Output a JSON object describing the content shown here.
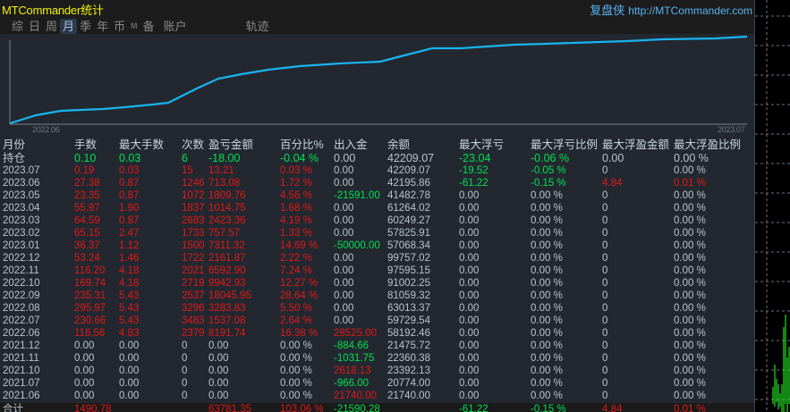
{
  "app": {
    "title": "MTCommander统计",
    "brand_cn": "复盘侠",
    "brand_url": "http://MTCommander.com"
  },
  "menu": {
    "items": [
      {
        "label": "综",
        "active": false
      },
      {
        "label": "日",
        "active": false
      },
      {
        "label": "周",
        "active": false
      },
      {
        "label": "月",
        "active": true
      },
      {
        "label": "季",
        "active": false
      },
      {
        "label": "年",
        "active": false
      },
      {
        "label": "币",
        "active": false
      },
      {
        "label": "M",
        "active": false
      },
      {
        "label": "备",
        "active": false
      },
      {
        "label": "账户",
        "active": false
      },
      {
        "label": "轨迹",
        "active": false
      }
    ]
  },
  "chart": {
    "x_start_label": "2022.06",
    "x_end_label": "2023.07",
    "line_color": "#19b4f0"
  },
  "table": {
    "headers": [
      "月份",
      "手数",
      "最大手数",
      "次数",
      "盈亏金额",
      "百分比%",
      "出入金",
      "余额",
      "最大浮亏",
      "最大浮亏比例",
      "最大浮盈金额",
      "最大浮盈比例"
    ],
    "holding": {
      "cells": [
        "持仓",
        "0.10",
        "0.03",
        "6",
        "-18.00",
        "-0.04 %",
        "0.00",
        "42209.07",
        "-23.04",
        "-0.06 %",
        "0.00",
        "0.00 %"
      ],
      "colors": [
        "w",
        "g",
        "g",
        "g",
        "g",
        "g",
        "w",
        "w",
        "g",
        "g",
        "w",
        "w"
      ]
    },
    "rows": [
      {
        "cells": [
          "2023.07",
          "0.19",
          "0.03",
          "15",
          "13.21",
          "0.03 %",
          "0.00",
          "42209.07",
          "-19.52",
          "-0.05 %",
          "0",
          "0.00 %"
        ],
        "colors": [
          "w",
          "r",
          "r",
          "r",
          "r",
          "r",
          "w",
          "w",
          "g",
          "g",
          "w",
          "w"
        ]
      },
      {
        "cells": [
          "2023.06",
          "27.38",
          "0.87",
          "1246",
          "713.08",
          "1.72 %",
          "0.00",
          "42195.86",
          "-61.22",
          "-0.15 %",
          "4.84",
          "0.01 %"
        ],
        "colors": [
          "w",
          "r",
          "r",
          "r",
          "r",
          "r",
          "w",
          "w",
          "g",
          "g",
          "r",
          "r"
        ]
      },
      {
        "cells": [
          "2023.05",
          "23.35",
          "0.87",
          "1072",
          "1809.76",
          "4.56 %",
          "-21591.00",
          "41482.78",
          "0.00",
          "0.00 %",
          "0",
          "0.00 %"
        ],
        "colors": [
          "w",
          "r",
          "r",
          "r",
          "r",
          "r",
          "g",
          "w",
          "w",
          "w",
          "w",
          "w"
        ]
      },
      {
        "cells": [
          "2023.04",
          "55.97",
          "1.90",
          "1837",
          "1014.75",
          "1.68 %",
          "0.00",
          "61264.02",
          "0.00",
          "0.00 %",
          "0",
          "0.00 %"
        ],
        "colors": [
          "w",
          "r",
          "r",
          "r",
          "r",
          "r",
          "w",
          "w",
          "w",
          "w",
          "w",
          "w"
        ]
      },
      {
        "cells": [
          "2023.03",
          "64.59",
          "0.87",
          "2683",
          "2423.36",
          "4.19 %",
          "0.00",
          "60249.27",
          "0.00",
          "0.00 %",
          "0",
          "0.00 %"
        ],
        "colors": [
          "w",
          "r",
          "r",
          "r",
          "r",
          "r",
          "w",
          "w",
          "w",
          "w",
          "w",
          "w"
        ]
      },
      {
        "cells": [
          "2023.02",
          "65.15",
          "2.47",
          "1733",
          "757.57",
          "1.33 %",
          "0.00",
          "57825.91",
          "0.00",
          "0.00 %",
          "0",
          "0.00 %"
        ],
        "colors": [
          "w",
          "r",
          "r",
          "r",
          "r",
          "r",
          "w",
          "w",
          "w",
          "w",
          "w",
          "w"
        ]
      },
      {
        "cells": [
          "2023.01",
          "36.37",
          "1.12",
          "1500",
          "7311.32",
          "14.69 %",
          "-50000.00",
          "57068.34",
          "0.00",
          "0.00 %",
          "0",
          "0.00 %"
        ],
        "colors": [
          "w",
          "r",
          "r",
          "r",
          "r",
          "r",
          "g",
          "w",
          "w",
          "w",
          "w",
          "w"
        ]
      },
      {
        "cells": [
          "2022.12",
          "53.24",
          "1.46",
          "1722",
          "2161.87",
          "2.22 %",
          "0.00",
          "99757.02",
          "0.00",
          "0.00 %",
          "0",
          "0.00 %"
        ],
        "colors": [
          "w",
          "r",
          "r",
          "r",
          "r",
          "r",
          "w",
          "w",
          "w",
          "w",
          "w",
          "w"
        ]
      },
      {
        "cells": [
          "2022.11",
          "116.20",
          "4.18",
          "2021",
          "6592.90",
          "7.24 %",
          "0.00",
          "97595.15",
          "0.00",
          "0.00 %",
          "0",
          "0.00 %"
        ],
        "colors": [
          "w",
          "r",
          "r",
          "r",
          "r",
          "r",
          "w",
          "w",
          "w",
          "w",
          "w",
          "w"
        ]
      },
      {
        "cells": [
          "2022.10",
          "169.74",
          "4.18",
          "2719",
          "9942.93",
          "12.27 %",
          "0.00",
          "91002.25",
          "0.00",
          "0.00 %",
          "0",
          "0.00 %"
        ],
        "colors": [
          "w",
          "r",
          "r",
          "r",
          "r",
          "r",
          "w",
          "w",
          "w",
          "w",
          "w",
          "w"
        ]
      },
      {
        "cells": [
          "2022.09",
          "235.31",
          "5.43",
          "2537",
          "18045.95",
          "28.64 %",
          "0.00",
          "81059.32",
          "0.00",
          "0.00 %",
          "0",
          "0.00 %"
        ],
        "colors": [
          "w",
          "r",
          "r",
          "r",
          "r",
          "r",
          "w",
          "w",
          "w",
          "w",
          "w",
          "w"
        ]
      },
      {
        "cells": [
          "2022.08",
          "295.97",
          "5.43",
          "3296",
          "3283.83",
          "5.50 %",
          "0.00",
          "63013.37",
          "0.00",
          "0.00 %",
          "0",
          "0.00 %"
        ],
        "colors": [
          "w",
          "r",
          "r",
          "r",
          "r",
          "r",
          "w",
          "w",
          "w",
          "w",
          "w",
          "w"
        ]
      },
      {
        "cells": [
          "2022.07",
          "230.66",
          "5.43",
          "3483",
          "1537.08",
          "2.64 %",
          "0.00",
          "59729.54",
          "0.00",
          "0.00 %",
          "0",
          "0.00 %"
        ],
        "colors": [
          "w",
          "r",
          "r",
          "r",
          "r",
          "r",
          "w",
          "w",
          "w",
          "w",
          "w",
          "w"
        ]
      },
      {
        "cells": [
          "2022.06",
          "116.56",
          "4.83",
          "2379",
          "8191.74",
          "16.38 %",
          "28525.00",
          "58192.46",
          "0.00",
          "0.00 %",
          "0",
          "0.00 %"
        ],
        "colors": [
          "w",
          "r",
          "r",
          "r",
          "r",
          "r",
          "r",
          "w",
          "w",
          "w",
          "w",
          "w"
        ]
      },
      {
        "cells": [
          "2021.12",
          "0.00",
          "0.00",
          "0",
          "0.00",
          "0.00 %",
          "-884.66",
          "21475.72",
          "0.00",
          "0.00 %",
          "0",
          "0.00 %"
        ],
        "colors": [
          "w",
          "w",
          "w",
          "w",
          "w",
          "w",
          "g",
          "w",
          "w",
          "w",
          "w",
          "w"
        ]
      },
      {
        "cells": [
          "2021.11",
          "0.00",
          "0.00",
          "0",
          "0.00",
          "0.00 %",
          "-1031.75",
          "22360.38",
          "0.00",
          "0.00 %",
          "0",
          "0.00 %"
        ],
        "colors": [
          "w",
          "w",
          "w",
          "w",
          "w",
          "w",
          "g",
          "w",
          "w",
          "w",
          "w",
          "w"
        ]
      },
      {
        "cells": [
          "2021.10",
          "0.00",
          "0.00",
          "0",
          "0.00",
          "0.00 %",
          "2618.13",
          "23392.13",
          "0.00",
          "0.00 %",
          "0",
          "0.00 %"
        ],
        "colors": [
          "w",
          "w",
          "w",
          "w",
          "w",
          "w",
          "r",
          "w",
          "w",
          "w",
          "w",
          "w"
        ]
      },
      {
        "cells": [
          "2021.07",
          "0.00",
          "0.00",
          "0",
          "0.00",
          "0.00 %",
          "-966.00",
          "20774.00",
          "0.00",
          "0.00 %",
          "0",
          "0.00 %"
        ],
        "colors": [
          "w",
          "w",
          "w",
          "w",
          "w",
          "w",
          "g",
          "w",
          "w",
          "w",
          "w",
          "w"
        ]
      },
      {
        "cells": [
          "2021.06",
          "0.00",
          "0.00",
          "0",
          "0.00",
          "0.00 %",
          "21740.00",
          "21740.00",
          "0.00",
          "0.00 %",
          "0",
          "0.00 %"
        ],
        "colors": [
          "w",
          "w",
          "w",
          "w",
          "w",
          "w",
          "r",
          "w",
          "w",
          "w",
          "w",
          "w"
        ]
      }
    ],
    "total": {
      "cells": [
        "合计",
        "1490.78",
        "",
        "",
        "63781.35",
        "103.06 %",
        "-21590.28",
        "",
        "-61.22",
        "-0.15 %",
        "4.84",
        "0.01 %"
      ],
      "colors": [
        "w",
        "r",
        "w",
        "w",
        "r",
        "r",
        "g",
        "w",
        "g",
        "g",
        "r",
        "r"
      ]
    }
  },
  "colors": {
    "panel_bg": "#232830",
    "title_bg": "#1c1c1c",
    "title_text": "#f2f200",
    "brand_text": "#56b4f0",
    "profit_red": "#e01818",
    "loss_green": "#00e050",
    "neutral": "#b8c2cc"
  }
}
